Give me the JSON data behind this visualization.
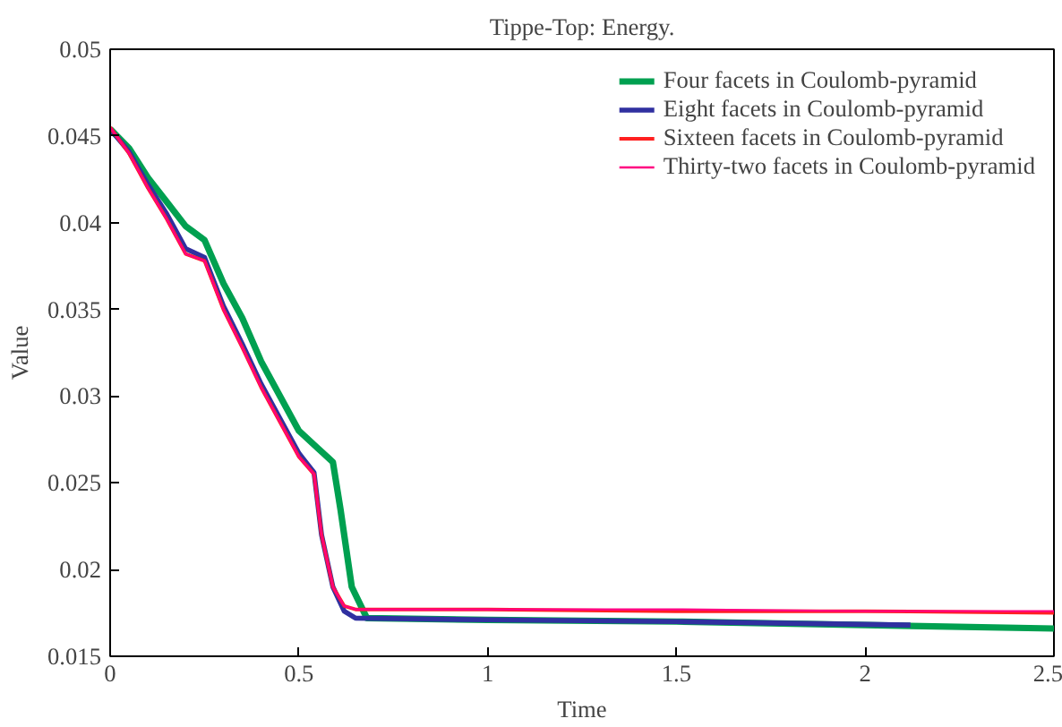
{
  "chart_data": {
    "type": "line",
    "title": "Tippe-Top: Energy.",
    "xlabel": "Time",
    "ylabel": "Value",
    "xlim": [
      0,
      2.5
    ],
    "ylim": [
      0.015,
      0.05
    ],
    "xticks": [
      0,
      0.5,
      1,
      1.5,
      2,
      2.5
    ],
    "yticks": [
      0.015,
      0.02,
      0.025,
      0.03,
      0.035,
      0.04,
      0.045,
      0.05
    ],
    "grid": false,
    "legend": "top right",
    "line_style": "solid",
    "series": [
      {
        "name": "Four facets in Coulomb-pyramid",
        "color": "#00a050",
        "x": [
          0,
          0.05,
          0.1,
          0.15,
          0.2,
          0.25,
          0.3,
          0.35,
          0.4,
          0.45,
          0.5,
          0.55,
          0.59,
          0.61,
          0.64,
          0.68,
          1,
          1.5,
          2,
          2.5
        ],
        "values": [
          0.0454,
          0.0443,
          0.0426,
          0.0412,
          0.0398,
          0.039,
          0.0365,
          0.0345,
          0.032,
          0.03,
          0.028,
          0.027,
          0.0262,
          0.0235,
          0.019,
          0.0172,
          0.0171,
          0.017,
          0.0168,
          0.0166
        ]
      },
      {
        "name": "Eight facets in Coulomb-pyramid",
        "color": "#3030a0",
        "x": [
          0,
          0.05,
          0.1,
          0.15,
          0.2,
          0.25,
          0.3,
          0.35,
          0.4,
          0.45,
          0.5,
          0.54,
          0.56,
          0.59,
          0.62,
          0.65,
          1,
          1.5,
          2.12
        ],
        "values": [
          0.0454,
          0.0441,
          0.0422,
          0.0405,
          0.0385,
          0.038,
          0.0352,
          0.033,
          0.0307,
          0.0287,
          0.0267,
          0.0256,
          0.022,
          0.019,
          0.0176,
          0.0172,
          0.0171,
          0.017,
          0.0168
        ]
      },
      {
        "name": "Sixteen facets in Coulomb-pyramid",
        "color": "#ff2020",
        "x": [
          0,
          0.05,
          0.1,
          0.15,
          0.2,
          0.25,
          0.3,
          0.35,
          0.4,
          0.45,
          0.5,
          0.54,
          0.56,
          0.59,
          0.62,
          0.65,
          1,
          1.5,
          2,
          2.5
        ],
        "values": [
          0.0455,
          0.044,
          0.042,
          0.0402,
          0.0382,
          0.0378,
          0.035,
          0.0328,
          0.0305,
          0.0285,
          0.0265,
          0.0255,
          0.022,
          0.019,
          0.0179,
          0.0177,
          0.0177,
          0.0176,
          0.0176,
          0.0175
        ]
      },
      {
        "name": "Thirty-two facets in Coulomb-pyramid",
        "color": "#ff0080",
        "x": [
          0,
          0.05,
          0.1,
          0.15,
          0.2,
          0.25,
          0.3,
          0.35,
          0.4,
          0.45,
          0.5,
          0.54,
          0.56,
          0.59,
          0.62,
          0.65,
          1,
          1.5,
          2,
          2.5
        ],
        "values": [
          0.0455,
          0.044,
          0.042,
          0.0402,
          0.0382,
          0.0378,
          0.035,
          0.0328,
          0.0305,
          0.0285,
          0.0265,
          0.0255,
          0.022,
          0.019,
          0.0179,
          0.0177,
          0.0177,
          0.0177,
          0.0176,
          0.0176
        ]
      }
    ]
  }
}
